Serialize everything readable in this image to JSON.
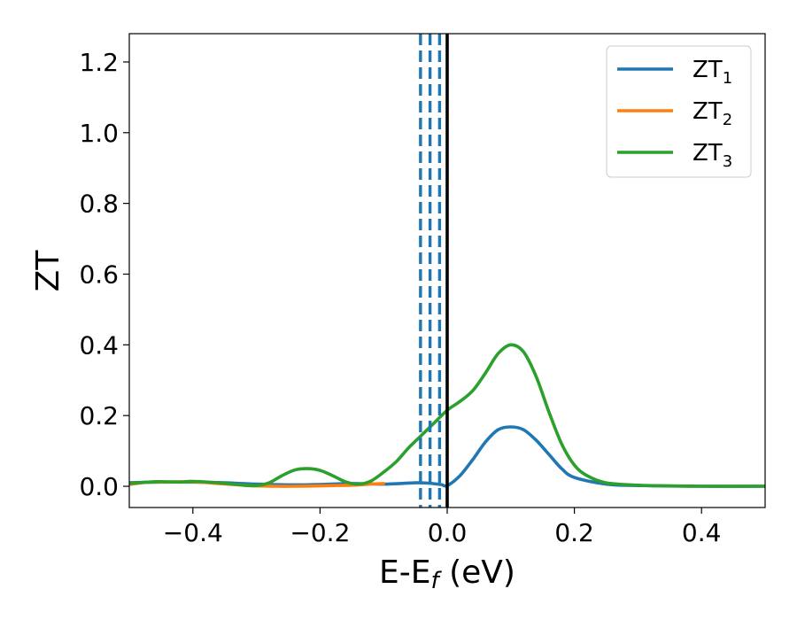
{
  "chart_data": {
    "type": "line",
    "xlabel": "E-E",
    "xlabel_sub": "f",
    "xlabel_unit": " (eV)",
    "ylabel": "ZT",
    "xlim": [
      -0.5,
      0.5
    ],
    "ylim": [
      -0.06,
      1.28
    ],
    "xticks": [
      -0.4,
      -0.2,
      0.0,
      0.2,
      0.4
    ],
    "xtick_labels": [
      "−0.4",
      "−0.2",
      "0.0",
      "0.2",
      "0.4"
    ],
    "yticks": [
      0.0,
      0.2,
      0.4,
      0.6,
      0.8,
      1.0,
      1.2
    ],
    "ytick_labels": [
      "0.0",
      "0.2",
      "0.4",
      "0.6",
      "0.8",
      "1.0",
      "1.2"
    ],
    "grid": false,
    "legend_position": "top-right",
    "series": [
      {
        "name": "ZT",
        "name_sub": "1",
        "color": "#1f77b4",
        "x": [
          -0.5,
          -0.45,
          -0.4,
          -0.35,
          -0.3,
          -0.25,
          -0.2,
          -0.15,
          -0.1,
          -0.05,
          -0.03,
          -0.01,
          0.0,
          0.02,
          0.04,
          0.06,
          0.08,
          0.1,
          0.12,
          0.14,
          0.16,
          0.18,
          0.2,
          0.25,
          0.3,
          0.4,
          0.5
        ],
        "y": [
          0.01,
          0.012,
          0.012,
          0.01,
          0.006,
          0.004,
          0.005,
          0.008,
          0.006,
          0.01,
          0.009,
          0.005,
          0.002,
          0.03,
          0.075,
          0.125,
          0.16,
          0.168,
          0.16,
          0.13,
          0.09,
          0.05,
          0.025,
          0.006,
          0.002,
          0.0,
          0.0
        ]
      },
      {
        "name": "ZT",
        "name_sub": "2",
        "color": "#ff7f0e",
        "x": [
          -0.5,
          -0.47,
          -0.44,
          -0.4,
          -0.36,
          -0.32,
          -0.3,
          -0.27,
          -0.24,
          -0.2,
          -0.18,
          -0.15,
          -0.13,
          -0.1
        ],
        "y": [
          0.005,
          0.012,
          0.012,
          0.013,
          0.008,
          0.003,
          0.001,
          0.0,
          0.0,
          0.001,
          0.002,
          0.003,
          0.005,
          0.008
        ]
      },
      {
        "name": "ZT",
        "name_sub": "3",
        "color": "#2ca02c",
        "x": [
          -0.5,
          -0.46,
          -0.42,
          -0.4,
          -0.36,
          -0.32,
          -0.3,
          -0.28,
          -0.26,
          -0.24,
          -0.22,
          -0.2,
          -0.18,
          -0.16,
          -0.14,
          -0.12,
          -0.1,
          -0.08,
          -0.06,
          -0.04,
          -0.02,
          0.0,
          0.02,
          0.04,
          0.06,
          0.08,
          0.1,
          0.12,
          0.14,
          0.16,
          0.18,
          0.2,
          0.22,
          0.25,
          0.3,
          0.35,
          0.4,
          0.5
        ],
        "y": [
          0.008,
          0.013,
          0.012,
          0.014,
          0.01,
          0.003,
          0.002,
          0.01,
          0.03,
          0.046,
          0.05,
          0.045,
          0.03,
          0.013,
          0.006,
          0.015,
          0.04,
          0.07,
          0.11,
          0.145,
          0.18,
          0.215,
          0.24,
          0.27,
          0.32,
          0.375,
          0.4,
          0.38,
          0.31,
          0.21,
          0.12,
          0.06,
          0.03,
          0.01,
          0.003,
          0.001,
          0.0,
          0.0
        ]
      }
    ],
    "vlines": [
      {
        "x": -0.042,
        "color": "#1f77b4",
        "style": "dashed"
      },
      {
        "x": -0.027,
        "color": "#1f77b4",
        "style": "dashed"
      },
      {
        "x": -0.012,
        "color": "#1f77b4",
        "style": "dashed"
      },
      {
        "x": 0.0,
        "color": "#000000",
        "style": "solid"
      }
    ]
  }
}
